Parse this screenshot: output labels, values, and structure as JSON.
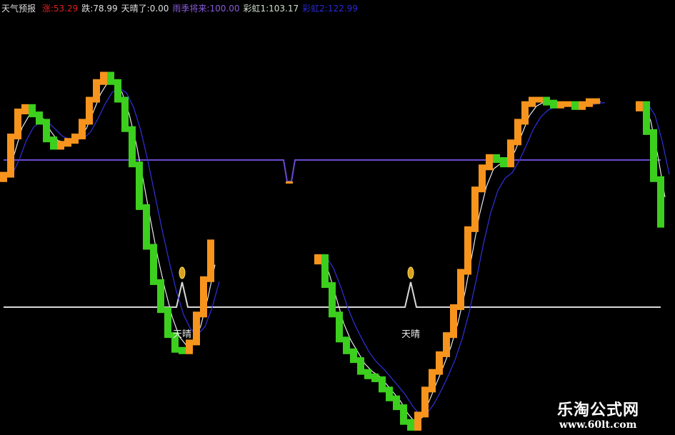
{
  "header": {
    "name": "天气预报",
    "items": [
      {
        "label": "涨:",
        "value": "53.29",
        "color": "#e02020"
      },
      {
        "label": "跌:",
        "value": "78.99",
        "color": "#e0e0e0"
      },
      {
        "label": "天晴了:",
        "value": "0.00",
        "color": "#e0e0e0"
      },
      {
        "label": "雨季将来:",
        "value": "100.00",
        "color": "#8a5ad8"
      },
      {
        "label": "彩虹1:",
        "value": "103.17",
        "color": "#d0e0d0"
      },
      {
        "label": "彩虹2:",
        "value": "122.99",
        "color": "#2a2ad8"
      }
    ]
  },
  "chart_data": {
    "type": "line",
    "title": "天气预报",
    "hlines": [
      {
        "name": "雨季将来",
        "value": 100,
        "color": "#6a4ad0"
      },
      {
        "name": "天晴了",
        "value": 0,
        "color": "#d8d8d8"
      }
    ],
    "ylim": [
      -85,
      160
    ],
    "colors": {
      "rise": "#f7941d",
      "fall": "#3ccf1e",
      "rainbow1": "#e8e8e8",
      "rainbow2": "#3030e0"
    },
    "segments": [
      [
        [
          0,
          90
        ],
        [
          1,
          116
        ],
        [
          2,
          133
        ],
        [
          3,
          136
        ],
        [
          4,
          131
        ],
        [
          5,
          126
        ],
        [
          6,
          114
        ],
        [
          7,
          109
        ],
        [
          8,
          111
        ],
        [
          9,
          113
        ],
        [
          10,
          116
        ],
        [
          11,
          126
        ],
        [
          12,
          141
        ],
        [
          13,
          153
        ],
        [
          14,
          158
        ],
        [
          15,
          153
        ],
        [
          16,
          141
        ],
        [
          17,
          121
        ],
        [
          18,
          97
        ],
        [
          19,
          68
        ],
        [
          20,
          41
        ],
        [
          21,
          17
        ],
        [
          22,
          -2
        ],
        [
          23,
          -19
        ],
        [
          24,
          -29
        ],
        [
          25,
          -30
        ],
        [
          26,
          -24
        ],
        [
          27,
          -5
        ],
        [
          28,
          19
        ],
        [
          29,
          44
        ]
      ],
      [
        [
          44,
          34
        ],
        [
          45,
          15
        ],
        [
          46,
          -5
        ],
        [
          47,
          -22
        ],
        [
          48,
          -30
        ],
        [
          49,
          -36
        ],
        [
          50,
          -44
        ],
        [
          51,
          -47
        ],
        [
          52,
          -49
        ],
        [
          53,
          -56
        ],
        [
          54,
          -62
        ],
        [
          55,
          -68
        ],
        [
          56,
          -78
        ],
        [
          57,
          -82
        ],
        [
          58,
          -73
        ],
        [
          59,
          -56
        ],
        [
          60,
          -44
        ],
        [
          61,
          -32
        ],
        [
          62,
          -19
        ],
        [
          63,
          0
        ],
        [
          64,
          24
        ],
        [
          65,
          53
        ],
        [
          66,
          80
        ],
        [
          67,
          95
        ],
        [
          68,
          102
        ],
        [
          69,
          100
        ],
        [
          70,
          97
        ],
        [
          71,
          112
        ],
        [
          72,
          126
        ],
        [
          73,
          138
        ],
        [
          74,
          141
        ],
        [
          75,
          141
        ],
        [
          76,
          139
        ],
        [
          77,
          137
        ],
        [
          78,
          138
        ],
        [
          79,
          138
        ],
        [
          80,
          136
        ],
        [
          81,
          138
        ],
        [
          82,
          140
        ],
        [
          83,
          140
        ]
      ],
      [
        [
          89,
          138
        ],
        [
          90,
          119
        ],
        [
          91,
          87
        ],
        [
          92,
          56
        ]
      ]
    ],
    "signals": [
      {
        "bar": 25,
        "label": "天晴"
      },
      {
        "bar": 57,
        "label": "天晴"
      }
    ],
    "dip_marker": {
      "bar": 40
    }
  },
  "watermark": {
    "title": "乐淘公式网",
    "url": "www.60lt.com"
  }
}
